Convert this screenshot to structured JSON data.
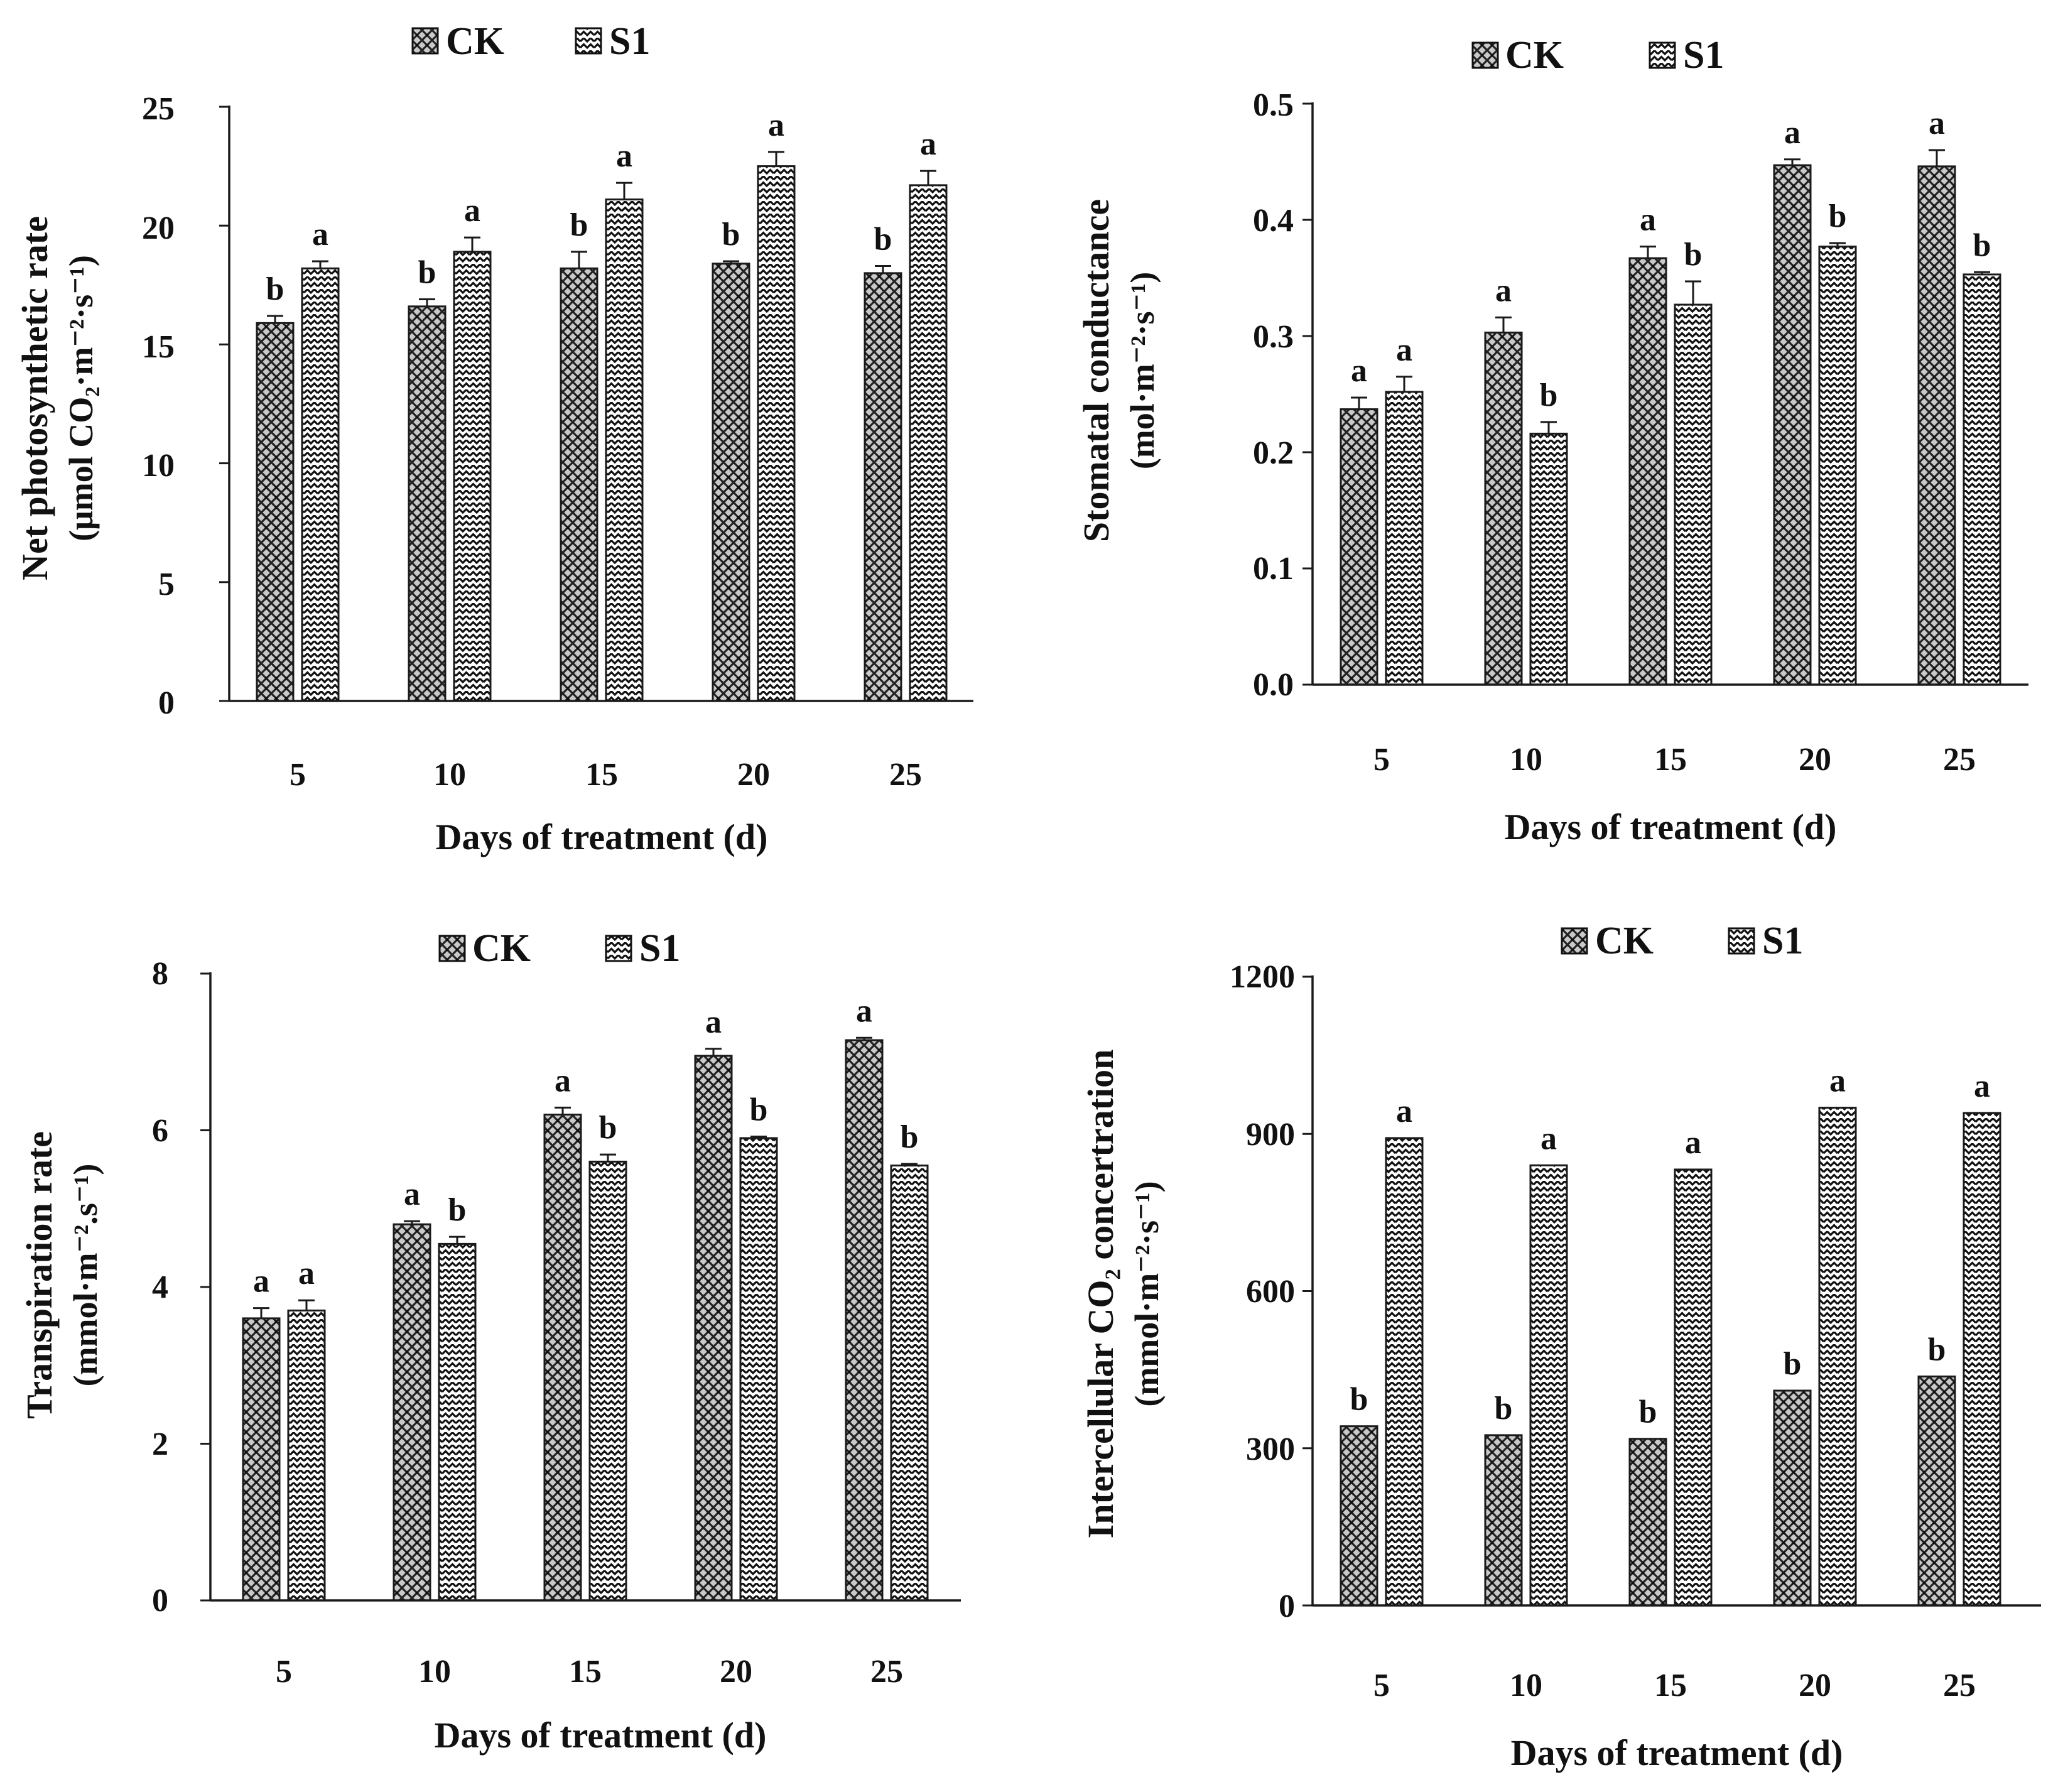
{
  "colors": {
    "ink": "#1a1a1a",
    "ck_fill": "#bdbdbd",
    "s1_fill": "#ffffff"
  },
  "chart_data": [
    {
      "type": "bar",
      "title": "",
      "legend": [
        "CK",
        "S1"
      ],
      "legend_position": "top",
      "xlabel": "Days of treatment (d)",
      "ylabel_line1": "Net photosynthetic rate",
      "ylabel_line2": "(μmol CO₂·m⁻²·s⁻¹)",
      "ylim": [
        0,
        25
      ],
      "yticks": [
        0,
        5,
        10,
        15,
        20,
        25
      ],
      "ytick_labels": [
        "0",
        "5",
        "10",
        "15",
        "20",
        "25"
      ],
      "categories": [
        "5",
        "10",
        "15",
        "20",
        "25"
      ],
      "series": [
        {
          "name": "CK",
          "values": [
            15.9,
            16.6,
            18.2,
            18.4,
            18.0
          ],
          "errors": [
            0.3,
            0.3,
            0.7,
            0.1,
            0.3
          ],
          "labels": [
            "b",
            "b",
            "b",
            "b",
            "b"
          ]
        },
        {
          "name": "S1",
          "values": [
            18.2,
            18.9,
            21.1,
            22.5,
            21.7
          ],
          "errors": [
            0.3,
            0.6,
            0.7,
            0.6,
            0.6
          ],
          "labels": [
            "a",
            "a",
            "a",
            "a",
            "a"
          ]
        }
      ]
    },
    {
      "type": "bar",
      "title": "",
      "legend": [
        "CK",
        "S1"
      ],
      "legend_position": "top",
      "xlabel": "Days of treatment (d)",
      "ylabel_line1": "Stomatal conductance",
      "ylabel_line2": "(mol·m⁻²·s⁻¹)",
      "ylim": [
        0,
        0.5
      ],
      "yticks": [
        0,
        0.1,
        0.2,
        0.3,
        0.4,
        0.5
      ],
      "ytick_labels": [
        "0.0",
        "0.1",
        "0.2",
        "0.3",
        "0.4",
        "0.5"
      ],
      "categories": [
        "5",
        "10",
        "15",
        "20",
        "25"
      ],
      "series": [
        {
          "name": "CK",
          "values": [
            0.237,
            0.303,
            0.367,
            0.447,
            0.446
          ],
          "errors": [
            0.01,
            0.013,
            0.01,
            0.005,
            0.014
          ],
          "labels": [
            "a",
            "a",
            "a",
            "a",
            "a"
          ]
        },
        {
          "name": "S1",
          "values": [
            0.252,
            0.216,
            0.327,
            0.377,
            0.353
          ],
          "errors": [
            0.013,
            0.01,
            0.02,
            0.003,
            0.002
          ],
          "labels": [
            "a",
            "b",
            "b",
            "b",
            "b"
          ]
        }
      ]
    },
    {
      "type": "bar",
      "title": "",
      "legend": [
        "CK",
        "S1"
      ],
      "legend_position": "top",
      "xlabel": "Days of treatment (d)",
      "ylabel_line1": "Transpiration rate",
      "ylabel_line2": "(mmol·m⁻².s⁻¹)",
      "ylim": [
        0,
        8
      ],
      "yticks": [
        0,
        2,
        4,
        6,
        8
      ],
      "ytick_labels": [
        "0",
        "2",
        "4",
        "6",
        "8"
      ],
      "categories": [
        "5",
        "10",
        "15",
        "20",
        "25"
      ],
      "series": [
        {
          "name": "CK",
          "values": [
            3.6,
            4.8,
            6.2,
            6.95,
            7.15
          ],
          "errors": [
            0.13,
            0.04,
            0.09,
            0.09,
            0.03
          ],
          "labels": [
            "a",
            "a",
            "a",
            "a",
            "a"
          ]
        },
        {
          "name": "S1",
          "values": [
            3.7,
            4.55,
            5.6,
            5.9,
            5.55
          ],
          "errors": [
            0.13,
            0.09,
            0.09,
            0.02,
            0.02
          ],
          "labels": [
            "a",
            "b",
            "b",
            "b",
            "b"
          ]
        }
      ]
    },
    {
      "type": "bar",
      "title": "",
      "legend": [
        "CK",
        "S1"
      ],
      "legend_position": "top",
      "xlabel": "Days of treatment (d)",
      "ylabel_line1": "Intercellular CO₂ concertration",
      "ylabel_line2": "(mmol·m⁻²·s⁻¹)",
      "ylim": [
        0,
        1200
      ],
      "yticks": [
        0,
        300,
        600,
        900,
        1200
      ],
      "ytick_labels": [
        "0",
        "300",
        "600",
        "900",
        "1200"
      ],
      "categories": [
        "5",
        "10",
        "15",
        "20",
        "25"
      ],
      "series": [
        {
          "name": "CK",
          "values": [
            342,
            325,
            318,
            410,
            437
          ],
          "errors": [
            0,
            0,
            0,
            0,
            0
          ],
          "labels": [
            "b",
            "b",
            "b",
            "b",
            "b"
          ]
        },
        {
          "name": "S1",
          "values": [
            892,
            840,
            832,
            950,
            940
          ],
          "errors": [
            0,
            0,
            0,
            0,
            0
          ],
          "labels": [
            "a",
            "a",
            "a",
            "a",
            "a"
          ]
        }
      ]
    }
  ]
}
